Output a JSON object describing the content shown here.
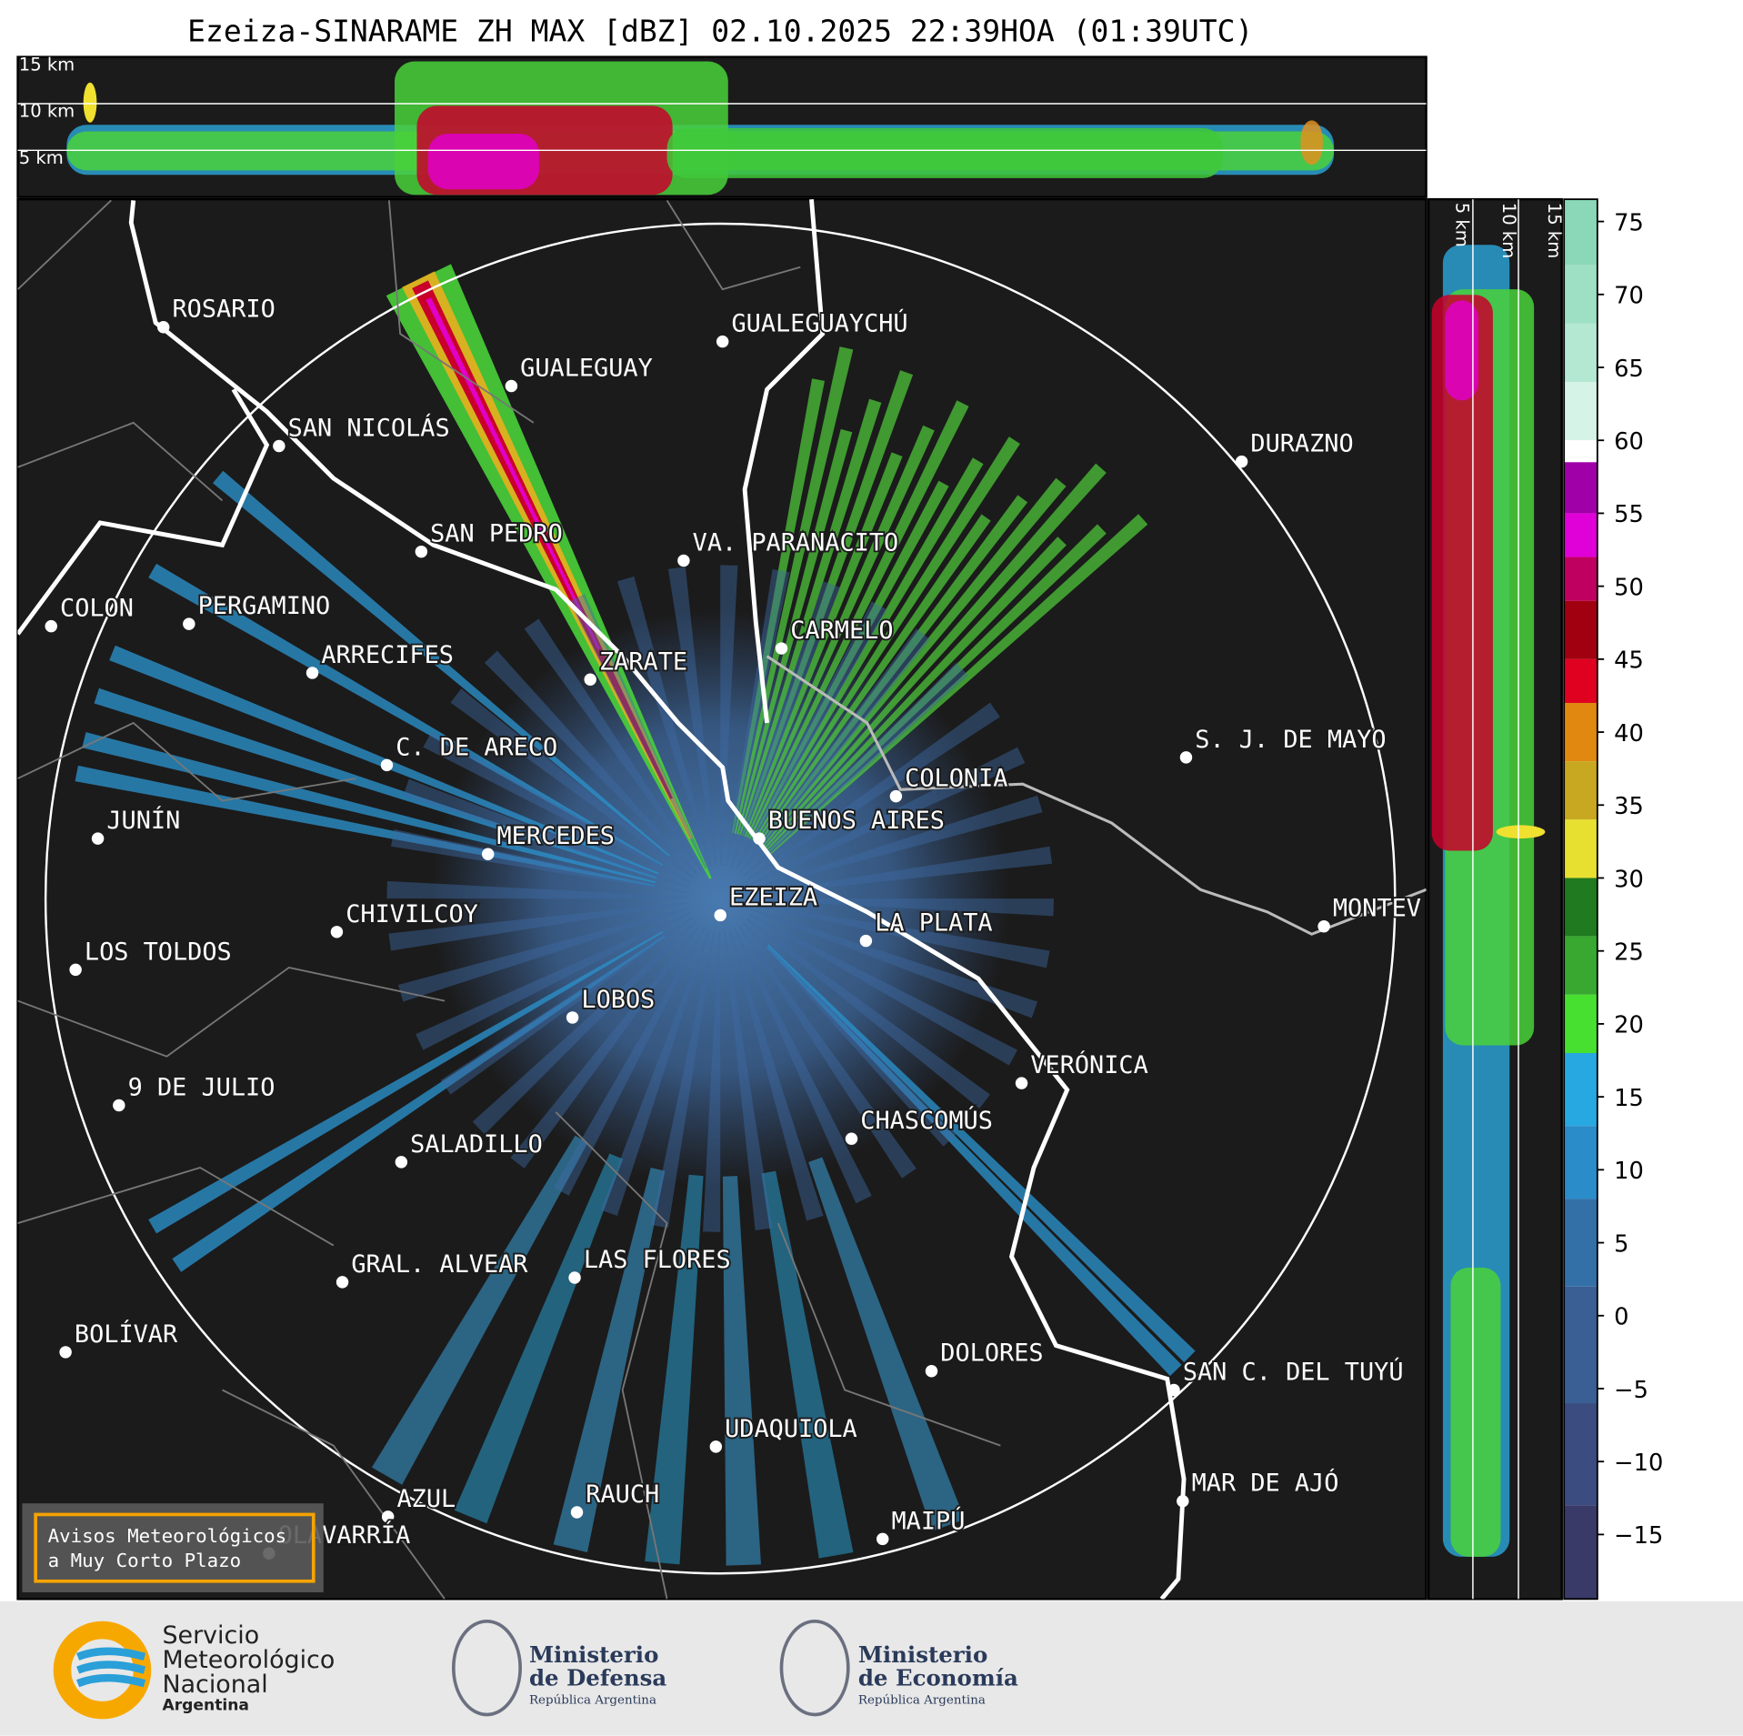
{
  "title": "Ezeiza-SINARAME ZH MAX [dBZ] 02.10.2025 22:39HOA (01:39UTC)",
  "height_labels": {
    "top": [
      "15 km",
      "10 km",
      "5 km"
    ],
    "side": [
      "5 km",
      "10 km",
      "15 km"
    ]
  },
  "cities": [
    "ROSARIO",
    "GUALEGUAYCHÚ",
    "GUALEGUAY",
    "SAN NICOLÁS",
    "DURAZNO",
    "SAN PEDRO",
    "VA. PARANACITO",
    "COLON",
    "PERGAMINO",
    "CARMELO",
    "ARRECIFES",
    "ZARATE",
    "S. J. DE MAYO",
    "C. DE ARECO",
    "COLONIA",
    "JUNÍN",
    "BUENOS AIRES",
    "MERCEDES",
    "EZEIZA",
    "MONTEV",
    "LA PLATA",
    "CHIVILCOY",
    "LOS TOLDOS",
    "LOBOS",
    "VERÓNICA",
    "9 DE JULIO",
    "CHASCOMÚS",
    "SALADILLO",
    "GRAL. ALVEAR",
    "LAS FLORES",
    "BOLÍVAR",
    "DOLORES",
    "SAN C. DEL TUYÚ",
    "UDAQUIOLA",
    "MAR DE AJÓ",
    "AZUL",
    "RAUCH",
    "OLAVARRÍA",
    "MAIPÚ"
  ],
  "colorbar": {
    "ticks": [
      75,
      70,
      65,
      60,
      55,
      50,
      45,
      40,
      35,
      30,
      25,
      20,
      15,
      10,
      5,
      0,
      {
        "value": -5,
        "label": "−5"
      },
      {
        "value": -10,
        "label": "−10"
      },
      {
        "value": -15,
        "label": "−15"
      }
    ]
  },
  "notice": [
    "Avisos Meteorológicos",
    "a Muy Corto Plazo"
  ],
  "logos": {
    "smn": [
      "Servicio",
      "Meteorológico",
      "Nacional",
      "Argentina"
    ],
    "defensa": [
      "Ministerio",
      "de Defensa",
      "República Argentina"
    ],
    "economia": [
      "Ministerio",
      "de Economía",
      "República Argentina"
    ]
  }
}
